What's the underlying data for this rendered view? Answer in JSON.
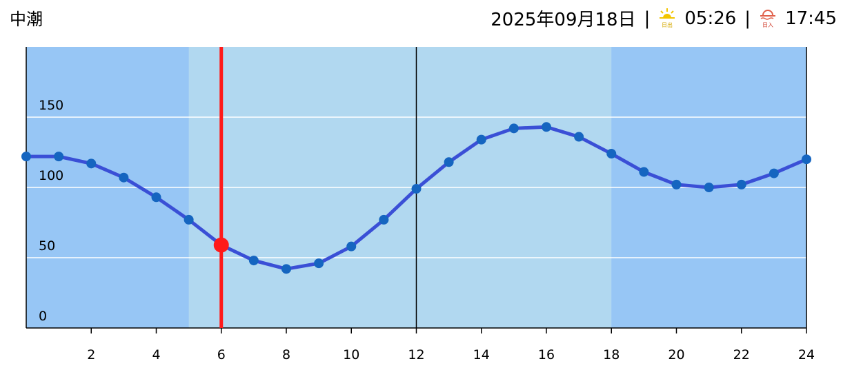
{
  "header": {
    "tide_name": "中潮",
    "date": "2025年09月18日",
    "separator": "|",
    "sunrise_icon_label": "日出",
    "sunrise": "05:26",
    "sunset_icon_label": "日入",
    "sunset": "17:45"
  },
  "chart_data": {
    "type": "line",
    "x": [
      0,
      1,
      2,
      3,
      4,
      5,
      6,
      7,
      8,
      9,
      10,
      11,
      12,
      13,
      14,
      15,
      16,
      17,
      18,
      19,
      20,
      21,
      22,
      23,
      24
    ],
    "series": [
      {
        "color": "#3a4fd6",
        "marker_color": "#1565c0",
        "values": [
          122,
          122,
          117,
          107,
          93,
          77,
          59,
          48,
          42,
          46,
          58,
          77,
          99,
          118,
          134,
          142,
          143,
          136,
          124,
          111,
          102,
          100,
          102,
          110,
          120
        ]
      }
    ],
    "xlim": [
      0,
      24
    ],
    "xticks": [
      2,
      4,
      6,
      8,
      10,
      12,
      14,
      16,
      18,
      20,
      22,
      24
    ],
    "ylim": [
      0,
      200
    ],
    "yticks": [
      0,
      50,
      100,
      150
    ],
    "grid": true,
    "night_color": "#97c6f5",
    "day_color": "#b1d8f0",
    "day_band": [
      5,
      18
    ],
    "noon_line": 12,
    "current": {
      "x": 6,
      "value": 59,
      "color": "#ff1a1a"
    }
  }
}
